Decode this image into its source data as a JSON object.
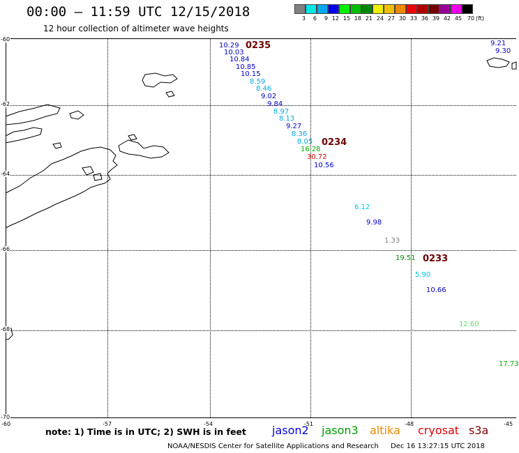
{
  "header": {
    "title": "00:00 – 11:59 UTC 12/15/2018",
    "subtitle": "12 hour collection of altimeter wave heights"
  },
  "legend": {
    "colors": [
      "#808080",
      "#00e8e8",
      "#00a8f0",
      "#0000f0",
      "#00f000",
      "#00c000",
      "#008800",
      "#f0f000",
      "#f0c000",
      "#f08800",
      "#f00000",
      "#b00000",
      "#780000",
      "#980098",
      "#f000f0",
      "#000000"
    ],
    "labels": [
      "3",
      "6",
      "9",
      "12",
      "15",
      "18",
      "21",
      "24",
      "27",
      "30",
      "33",
      "36",
      "39",
      "42",
      "45",
      "70"
    ],
    "unit": "(ft)"
  },
  "grid": {
    "lat_labels": [
      "-60",
      "-62",
      "-64",
      "-66",
      "-68",
      "-70"
    ],
    "lon_labels": [
      "-60",
      "-57",
      "-54",
      "-51",
      "-48",
      "-45"
    ]
  },
  "passes": [
    {
      "time": "0235",
      "color": "#6e0000"
    },
    {
      "time": "0234",
      "color": "#6e0000"
    },
    {
      "time": "0233",
      "color": "#6e0000"
    }
  ],
  "observations": [
    {
      "text": "10.29",
      "color": "#0000c8"
    },
    {
      "text": "10.03",
      "color": "#0000c8"
    },
    {
      "text": "10.84",
      "color": "#0000c8"
    },
    {
      "text": "10.85",
      "color": "#0000c8"
    },
    {
      "text": "10.15",
      "color": "#0000c8"
    },
    {
      "text": "8.59",
      "color": "#00a8e0"
    },
    {
      "text": "8.46",
      "color": "#00a8e0"
    },
    {
      "text": "9.02",
      "color": "#0000c8"
    },
    {
      "text": "9.84",
      "color": "#0000c8"
    },
    {
      "text": "8.97",
      "color": "#00a8e0"
    },
    {
      "text": "8.13",
      "color": "#00a8e0"
    },
    {
      "text": "9.27",
      "color": "#0000c8"
    },
    {
      "text": "8.36",
      "color": "#00a8e0"
    },
    {
      "text": "8.05",
      "color": "#00a8e0"
    },
    {
      "text": "16.28",
      "color": "#00b000"
    },
    {
      "text": "30.72",
      "color": "#e00000"
    },
    {
      "text": "10.56",
      "color": "#0000c8"
    },
    {
      "text": "6.12",
      "color": "#00c8e0"
    },
    {
      "text": "9.98",
      "color": "#0000c8"
    },
    {
      "text": "1.33",
      "color": "#808080"
    },
    {
      "text": "19.51",
      "color": "#008800"
    },
    {
      "text": "5.90",
      "color": "#00c8e0"
    },
    {
      "text": "10.66",
      "color": "#0000c8"
    },
    {
      "text": "12.60",
      "color": "#60e060"
    },
    {
      "text": "17.73",
      "color": "#00b000"
    },
    {
      "text": "9.21",
      "color": "#0000c8"
    },
    {
      "text": "9.30",
      "color": "#0000c8"
    }
  ],
  "footer": {
    "note": "note: 1) Time is in UTC; 2) SWH is in feet",
    "satellites": [
      {
        "name": "jason2",
        "color": "#0000e0"
      },
      {
        "name": "jason3",
        "color": "#00a000"
      },
      {
        "name": "altika",
        "color": "#f08800"
      },
      {
        "name": "cryosat",
        "color": "#e00000"
      },
      {
        "name": "s3a",
        "color": "#800000"
      }
    ],
    "credit": "NOAA/NESDIS Center for Satellite Applications and Research",
    "timestamp": "Dec 16 13:27:15 UTC 2018"
  }
}
